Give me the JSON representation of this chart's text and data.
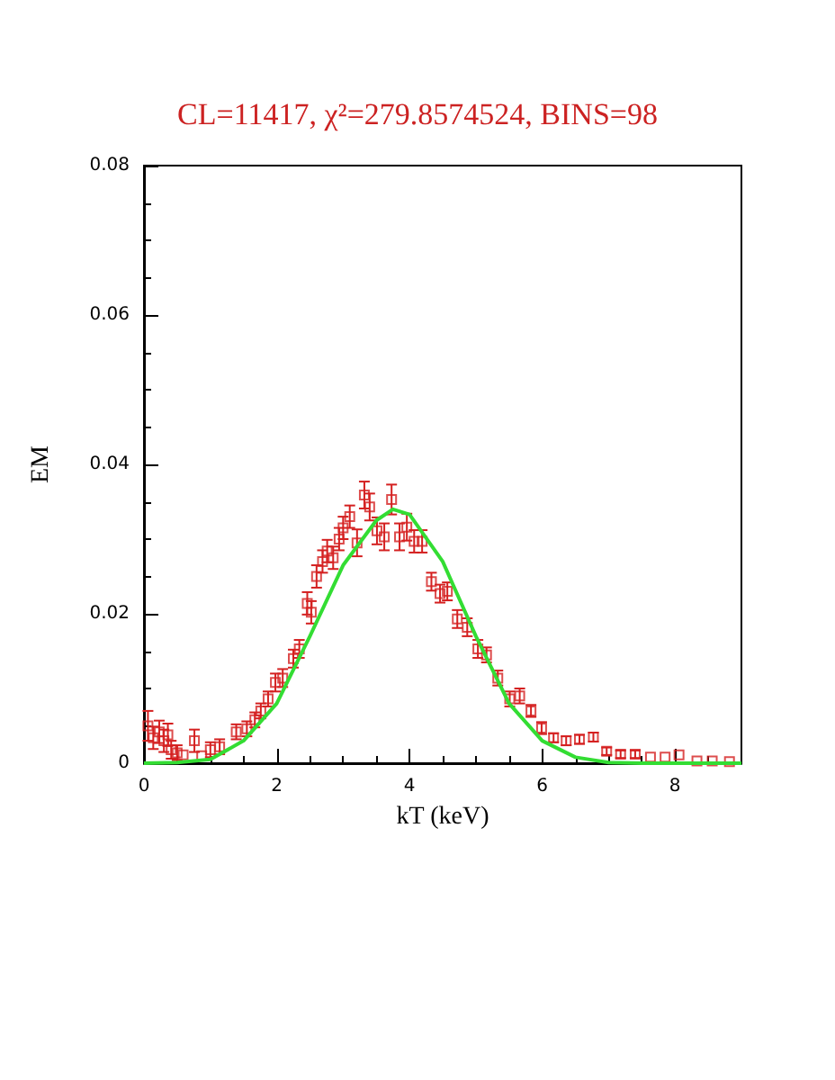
{
  "chart_data": {
    "type": "scatter",
    "title": "CL=11417, χ²=279.8574524, BINS=98",
    "xlabel": "kT (keV)",
    "ylabel": "EM",
    "xlim": [
      0,
      9
    ],
    "xticks": [
      0,
      2,
      4,
      6,
      8
    ],
    "ylim": [
      0,
      0.08
    ],
    "yticks": [
      0,
      0.02,
      0.04,
      0.06,
      0.08
    ],
    "grid": false,
    "series": [
      {
        "marker": "square",
        "color": "#d42020",
        "x": [
          0.06,
          0.14,
          0.23,
          0.3,
          0.36,
          0.41,
          0.5,
          0.59,
          0.76,
          0.87,
          1.0,
          1.14,
          1.39,
          1.55,
          1.67,
          1.76,
          1.87,
          1.98,
          2.09,
          2.25,
          2.34,
          2.46,
          2.52,
          2.6,
          2.69,
          2.76,
          2.85,
          2.94,
          3.0,
          3.1,
          3.21,
          3.32,
          3.4,
          3.51,
          3.62,
          3.73,
          3.85,
          3.96,
          4.07,
          4.19,
          4.33,
          4.46,
          4.57,
          4.72,
          4.87,
          5.03,
          5.16,
          5.33,
          5.51,
          5.66,
          5.83,
          5.99,
          6.17,
          6.36,
          6.56,
          6.77,
          6.97,
          7.18,
          7.4,
          7.63,
          7.85,
          8.06,
          8.33,
          8.56,
          8.82
        ],
        "values": [
          0.005,
          0.0034,
          0.0042,
          0.003,
          0.0038,
          0.0018,
          0.0014,
          0.0011,
          0.003,
          0.001,
          0.0018,
          0.0022,
          0.0042,
          0.0046,
          0.0058,
          0.007,
          0.0086,
          0.0108,
          0.0114,
          0.014,
          0.0153,
          0.0214,
          0.0202,
          0.025,
          0.027,
          0.0284,
          0.0275,
          0.03,
          0.0315,
          0.033,
          0.0295,
          0.0359,
          0.0343,
          0.0311,
          0.0303,
          0.0353,
          0.0303,
          0.0316,
          0.0297,
          0.0297,
          0.0243,
          0.0227,
          0.023,
          0.0193,
          0.0182,
          0.0153,
          0.0145,
          0.0114,
          0.0086,
          0.009,
          0.007,
          0.0047,
          0.0034,
          0.003,
          0.0032,
          0.0035,
          0.0016,
          0.0012,
          0.0012,
          0.0008,
          0.0008,
          0.0011,
          0.0003,
          0.0003,
          0.0002
        ],
        "errors": [
          0.002,
          0.0015,
          0.0015,
          0.0015,
          0.0015,
          0.0012,
          0.001,
          null,
          0.0015,
          null,
          0.001,
          0.001,
          0.001,
          0.001,
          0.001,
          0.001,
          0.001,
          0.0012,
          0.0012,
          0.0012,
          0.0012,
          0.0015,
          0.0015,
          0.0015,
          0.0015,
          0.0015,
          0.0015,
          0.0015,
          0.0015,
          0.0015,
          0.0018,
          0.0018,
          0.0018,
          0.0018,
          0.0018,
          0.002,
          0.0018,
          0.0018,
          0.0015,
          0.0015,
          0.0012,
          0.0012,
          0.0012,
          0.0012,
          0.0012,
          0.0012,
          0.001,
          0.001,
          0.001,
          0.001,
          0.0008,
          0.0008,
          0.0006,
          0.0006,
          0.0006,
          0.0006,
          0.0005,
          0.0005,
          0.0005,
          null,
          null,
          null,
          null,
          null,
          null
        ]
      },
      {
        "type": "line",
        "marker": "none",
        "line_style": "solid",
        "color": "#33dd33",
        "x": [
          0,
          0.5,
          1,
          1.5,
          2,
          2.5,
          3,
          3.5,
          3.75,
          4,
          4.5,
          5,
          5.5,
          6,
          6.5,
          7,
          7.5,
          9
        ],
        "values": [
          0,
          0.0001,
          0.0005,
          0.003,
          0.008,
          0.017,
          0.0265,
          0.0325,
          0.034,
          0.0333,
          0.027,
          0.017,
          0.008,
          0.003,
          0.0008,
          0.0001,
          0,
          0
        ]
      }
    ]
  }
}
